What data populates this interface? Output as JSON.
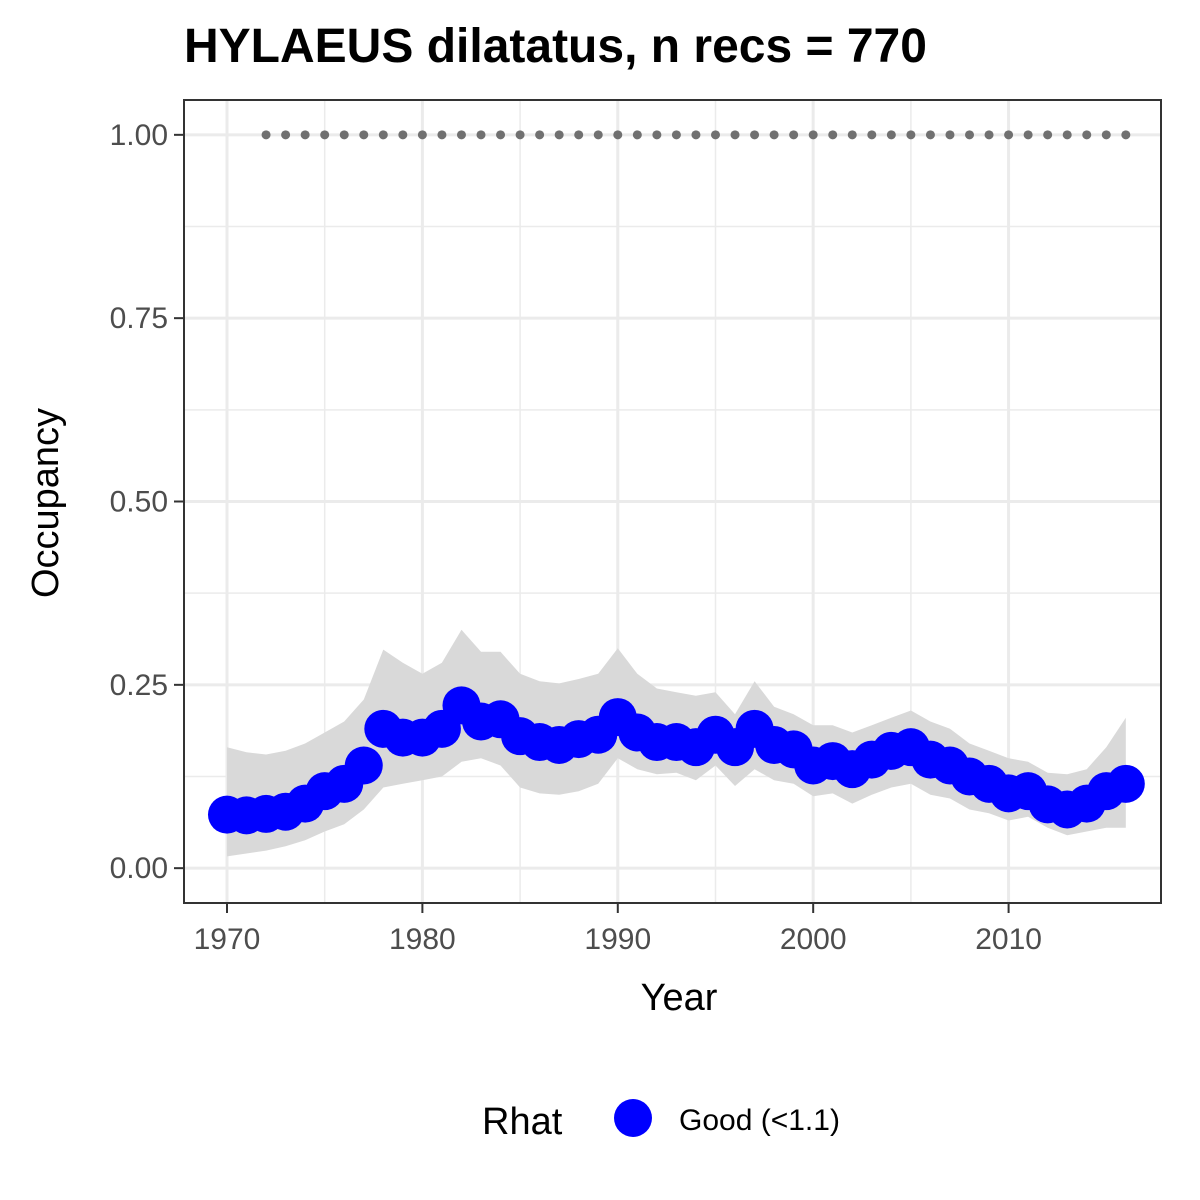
{
  "chart_data": {
    "type": "line",
    "title": "HYLAEUS dilatatus, n recs = 770",
    "xlabel": "Year",
    "ylabel": "Occupancy",
    "xlim": [
      1967.8,
      2017.8
    ],
    "ylim": [
      -0.0475,
      1.0475
    ],
    "x_ticks": [
      1970,
      1980,
      1990,
      2000,
      2010
    ],
    "x_tick_labels": [
      "1970",
      "1980",
      "1990",
      "2000",
      "2010"
    ],
    "y_ticks": [
      0,
      0.25,
      0.5,
      0.75,
      1.0
    ],
    "y_tick_labels": [
      "0.00",
      "0.25",
      "0.50",
      "0.75",
      "1.00"
    ],
    "grid": true,
    "legend": {
      "position": "bottom",
      "title": "Rhat",
      "entries": [
        {
          "label": "Good (<1.1)",
          "color": "#0000ff"
        }
      ]
    },
    "colors": {
      "points": "#0000ff",
      "ribbon": "#d9d9d9",
      "reference": "#707070",
      "panel_border": "#333333",
      "grid": "#ebebeb"
    },
    "x": [
      1970,
      1971,
      1972,
      1973,
      1974,
      1975,
      1976,
      1977,
      1978,
      1979,
      1980,
      1981,
      1982,
      1983,
      1984,
      1985,
      1986,
      1987,
      1988,
      1989,
      1990,
      1991,
      1992,
      1993,
      1994,
      1995,
      1996,
      1997,
      1998,
      1999,
      2000,
      2001,
      2002,
      2003,
      2004,
      2005,
      2006,
      2007,
      2008,
      2009,
      2010,
      2011,
      2012,
      2013,
      2014,
      2015,
      2016
    ],
    "series": [
      {
        "values": [
          0.073,
          0.072,
          0.074,
          0.077,
          0.088,
          0.105,
          0.115,
          0.14,
          0.19,
          0.178,
          0.178,
          0.19,
          0.222,
          0.2,
          0.203,
          0.18,
          0.172,
          0.168,
          0.176,
          0.182,
          0.206,
          0.185,
          0.172,
          0.172,
          0.165,
          0.182,
          0.165,
          0.19,
          0.168,
          0.162,
          0.14,
          0.146,
          0.135,
          0.148,
          0.16,
          0.165,
          0.148,
          0.14,
          0.125,
          0.115,
          0.102,
          0.105,
          0.087,
          0.08,
          0.088,
          0.105,
          0.115
        ],
        "lower": [
          0.016,
          0.02,
          0.024,
          0.03,
          0.038,
          0.05,
          0.06,
          0.08,
          0.11,
          0.115,
          0.12,
          0.125,
          0.145,
          0.15,
          0.14,
          0.11,
          0.102,
          0.1,
          0.105,
          0.115,
          0.15,
          0.135,
          0.128,
          0.13,
          0.12,
          0.14,
          0.112,
          0.135,
          0.12,
          0.115,
          0.098,
          0.102,
          0.088,
          0.1,
          0.11,
          0.115,
          0.1,
          0.095,
          0.08,
          0.075,
          0.065,
          0.07,
          0.055,
          0.045,
          0.05,
          0.055,
          0.055
        ],
        "upper": [
          0.165,
          0.158,
          0.155,
          0.16,
          0.17,
          0.185,
          0.2,
          0.23,
          0.298,
          0.28,
          0.265,
          0.28,
          0.325,
          0.295,
          0.295,
          0.265,
          0.255,
          0.252,
          0.258,
          0.265,
          0.3,
          0.265,
          0.245,
          0.24,
          0.235,
          0.24,
          0.21,
          0.255,
          0.22,
          0.21,
          0.195,
          0.195,
          0.185,
          0.195,
          0.205,
          0.215,
          0.2,
          0.19,
          0.17,
          0.16,
          0.15,
          0.145,
          0.13,
          0.128,
          0.135,
          0.165,
          0.205
        ]
      },
      {
        "x": [
          1972,
          1973,
          1974,
          1975,
          1976,
          1977,
          1978,
          1979,
          1980,
          1981,
          1982,
          1983,
          1984,
          1985,
          1986,
          1987,
          1988,
          1989,
          1990,
          1991,
          1992,
          1993,
          1994,
          1995,
          1996,
          1997,
          1998,
          1999,
          2000,
          2001,
          2002,
          2003,
          2004,
          2005,
          2006,
          2007,
          2008,
          2009,
          2010,
          2011,
          2012,
          2013,
          2014,
          2015,
          2016
        ],
        "values": [
          1,
          1,
          1,
          1,
          1,
          1,
          1,
          1,
          1,
          1,
          1,
          1,
          1,
          1,
          1,
          1,
          1,
          1,
          1,
          1,
          1,
          1,
          1,
          1,
          1,
          1,
          1,
          1,
          1,
          1,
          1,
          1,
          1,
          1,
          1,
          1,
          1,
          1,
          1,
          1,
          1,
          1,
          1,
          1,
          1
        ]
      }
    ]
  }
}
